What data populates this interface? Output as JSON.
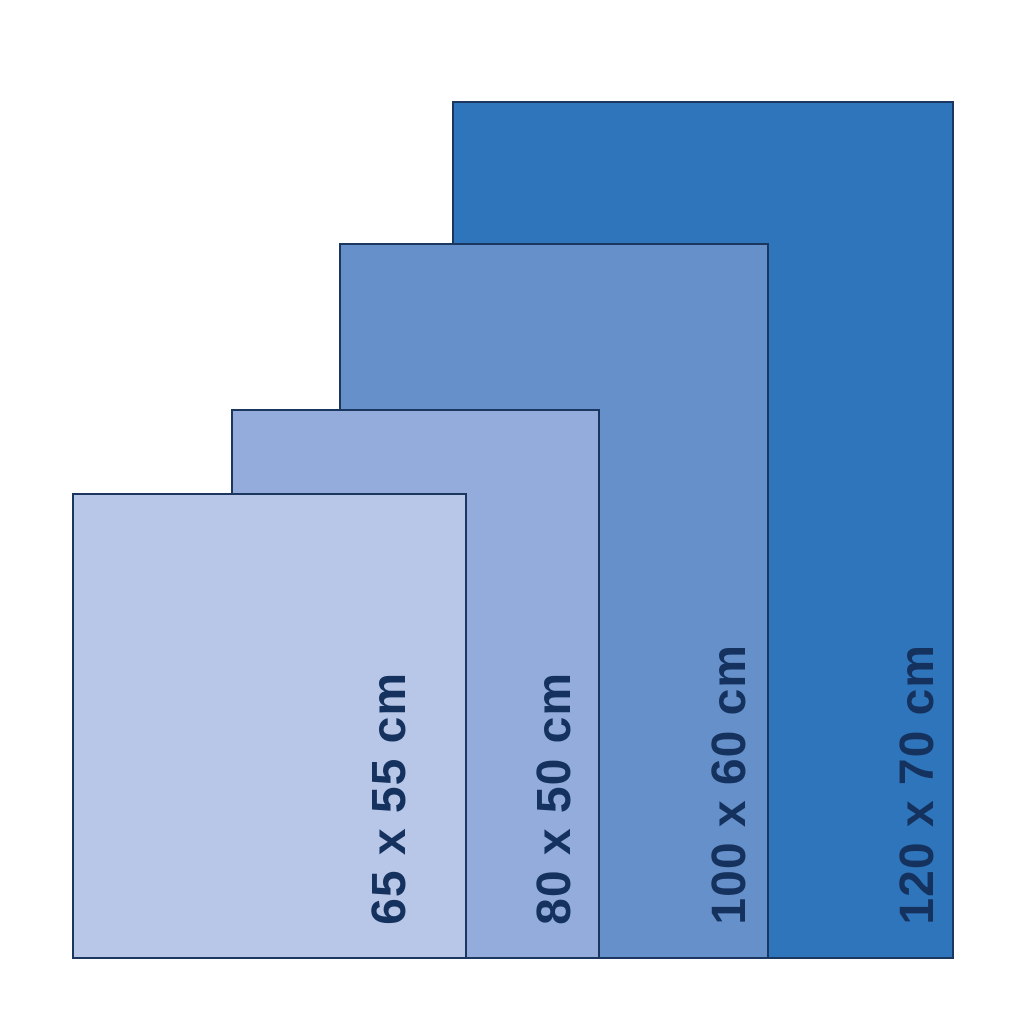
{
  "sizes": [
    {
      "label": "120 x 70 cm",
      "color": "#2f75bb"
    },
    {
      "label": "100 x 60 cm",
      "color": "#6690c9"
    },
    {
      "label": "80 x 50 cm",
      "color": "#93acdb"
    },
    {
      "label": "65 x 55 cm",
      "color": "#b8c7e8"
    }
  ],
  "border_color": "#1b365f",
  "text_color": "#15325e"
}
